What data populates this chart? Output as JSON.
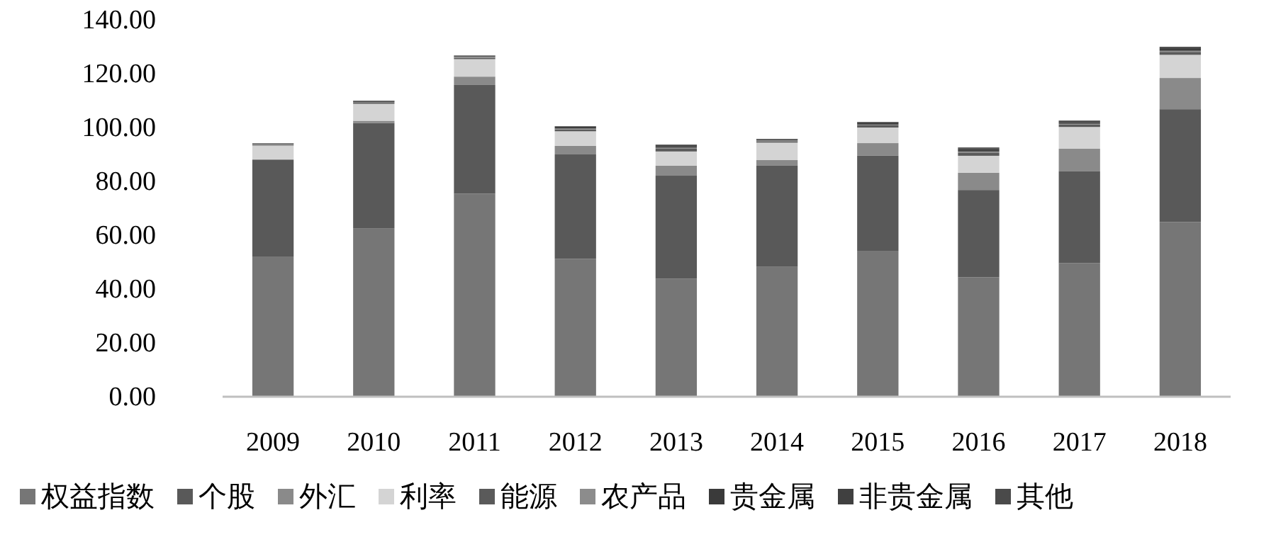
{
  "chart_data": {
    "type": "bar",
    "stacked": true,
    "legend": "bottom",
    "grid": false,
    "categories": [
      "2009",
      "2010",
      "2011",
      "2012",
      "2013",
      "2014",
      "2015",
      "2016",
      "2017",
      "2018"
    ],
    "ylim": [
      0,
      140
    ],
    "yticks": [
      {
        "value": 0,
        "label": "0.00"
      },
      {
        "value": 20,
        "label": "20.00"
      },
      {
        "value": 40,
        "label": "40.00"
      },
      {
        "value": 60,
        "label": "60.00"
      },
      {
        "value": 80,
        "label": "80.00"
      },
      {
        "value": 100,
        "label": "100.00"
      },
      {
        "value": 120,
        "label": "120.00"
      },
      {
        "value": 140,
        "label": "140.00"
      }
    ],
    "series": [
      {
        "name": "权益指数",
        "color": "#767676",
        "values": [
          52.1,
          62.6,
          75.4,
          51.2,
          43.8,
          48.4,
          54.2,
          44.4,
          49.6,
          64.9
        ]
      },
      {
        "name": "个股",
        "color": "#595959",
        "values": [
          35.8,
          39.1,
          40.4,
          38.8,
          38.3,
          37.4,
          35.3,
          32.4,
          34.1,
          41.9
        ]
      },
      {
        "name": "外汇",
        "color": "#8a8a8a",
        "values": [
          0.3,
          0.8,
          3.1,
          3.2,
          3.7,
          2.1,
          4.7,
          6.4,
          8.4,
          11.6
        ]
      },
      {
        "name": "利率",
        "color": "#d4d4d4",
        "values": [
          5.1,
          6.3,
          6.5,
          5.4,
          5.3,
          6.5,
          5.8,
          6.3,
          8.1,
          8.6
        ]
      },
      {
        "name": "能源",
        "color": "#5a5a5a",
        "values": [
          0.3,
          0.4,
          0.5,
          0.7,
          1.0,
          0.5,
          0.8,
          1.2,
          0.9,
          1.1
        ]
      },
      {
        "name": "农产品",
        "color": "#8c8c8c",
        "values": [
          0.2,
          0.2,
          0.3,
          0.3,
          0.4,
          0.3,
          0.3,
          0.4,
          0.3,
          0.4
        ]
      },
      {
        "name": "贵金属",
        "color": "#3a3a3a",
        "values": [
          0.2,
          0.3,
          0.3,
          0.4,
          0.6,
          0.3,
          0.5,
          0.7,
          0.6,
          0.7
        ]
      },
      {
        "name": "非贵金属",
        "color": "#404040",
        "values": [
          0.1,
          0.2,
          0.2,
          0.3,
          0.4,
          0.2,
          0.3,
          0.5,
          0.4,
          0.5
        ]
      },
      {
        "name": "其他",
        "color": "#4a4a4a",
        "values": [
          0.1,
          0.1,
          0.1,
          0.2,
          0.2,
          0.1,
          0.2,
          0.3,
          0.2,
          0.3
        ]
      }
    ]
  }
}
